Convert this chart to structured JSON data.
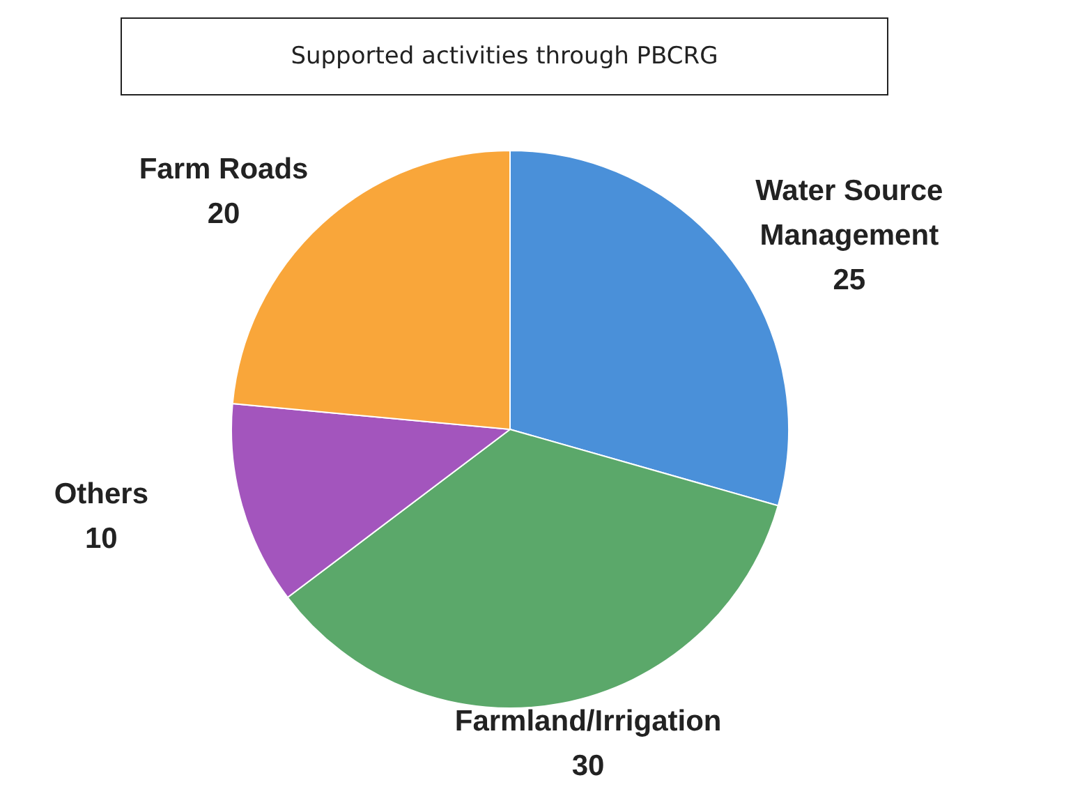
{
  "chart_data": {
    "type": "pie",
    "title": "Supported activities through PBCRG",
    "categories": [
      "Water Source Management",
      "Farmland/Irrigation",
      "Others",
      "Farm Roads"
    ],
    "values": [
      25,
      30,
      10,
      20
    ],
    "colors": [
      "#4a90d9",
      "#5ba86a",
      "#a355bd",
      "#f9a63a"
    ],
    "data_labels": true
  }
}
